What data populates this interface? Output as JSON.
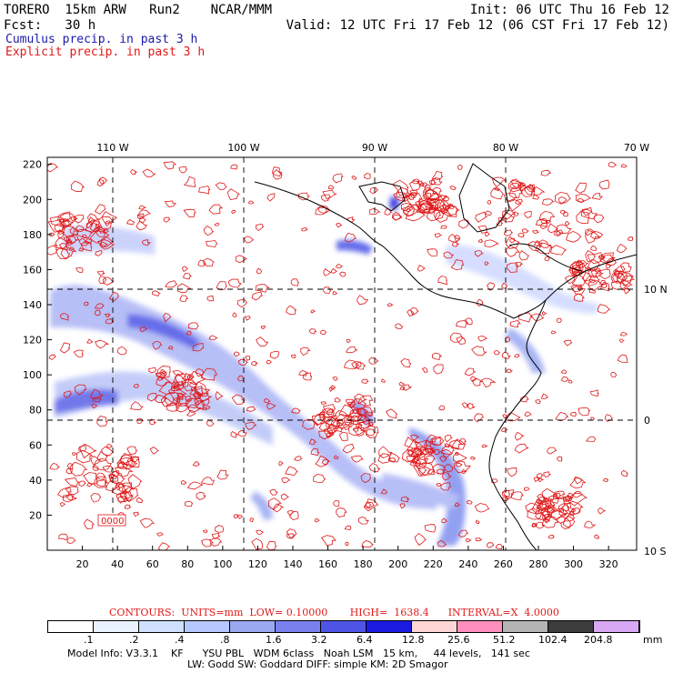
{
  "header": {
    "model": "TORERO  15km ARW   Run2    NCAR/MMM",
    "fcst": "Fcst:   30 h",
    "init": "Init: 06 UTC Thu 16 Feb 12",
    "valid": "Valid: 12 UTC Fri 17 Feb 12 (06 CST Fri 17 Feb 12)",
    "cumulus": "Cumulus precip. in past 3 h",
    "explicit": "Explicit precip. in past 3 h"
  },
  "colors": {
    "cumulus": "#1a1aa8",
    "explicit": "#e01818",
    "contour": "#e01818",
    "coast": "#000000"
  },
  "map": {
    "lon_labels": [
      "110 W",
      "100 W",
      "90 W",
      "80 W",
      "70 W"
    ],
    "lat_labels": [
      "10 N",
      "0",
      "10 S"
    ],
    "x_ticks": [
      "20",
      "40",
      "60",
      "80",
      "100",
      "120",
      "140",
      "160",
      "180",
      "200",
      "220",
      "240",
      "260",
      "280",
      "300",
      "320"
    ],
    "y_ticks": [
      "20",
      "40",
      "60",
      "80",
      "100",
      "120",
      "140",
      "160",
      "180",
      "200",
      "220"
    ],
    "label_0000": "0000"
  },
  "contours_line": "CONTOURS:  UNITS=mm  LOW= 0.10000       HIGH=  1638.4      INTERVAL=X  4.0000",
  "colorbar": {
    "unit": "mm",
    "labels": [
      ".1",
      ".2",
      ".4",
      ".8",
      "1.6",
      "3.2",
      "6.4",
      "12.8",
      "25.6",
      "51.2",
      "102.4",
      "204.8"
    ],
    "colors": [
      "#ffffff",
      "#e8f2ff",
      "#cfe0ff",
      "#b5c8ff",
      "#9aa8f2",
      "#7a80ee",
      "#4e55e6",
      "#1a1ae0",
      "#ffd6d6",
      "#ff8fbc",
      "#b4b4b4",
      "#3c3c3c",
      "#d8a8f4"
    ]
  },
  "footer": {
    "line1": "Model Info: V3.3.1    KF      YSU PBL   WDM 6class   Noah LSM   15 km,     44 levels,   141 sec",
    "line2": "LW: Godd SW: Goddard DIFF: simple KM: 2D Smagor"
  }
}
